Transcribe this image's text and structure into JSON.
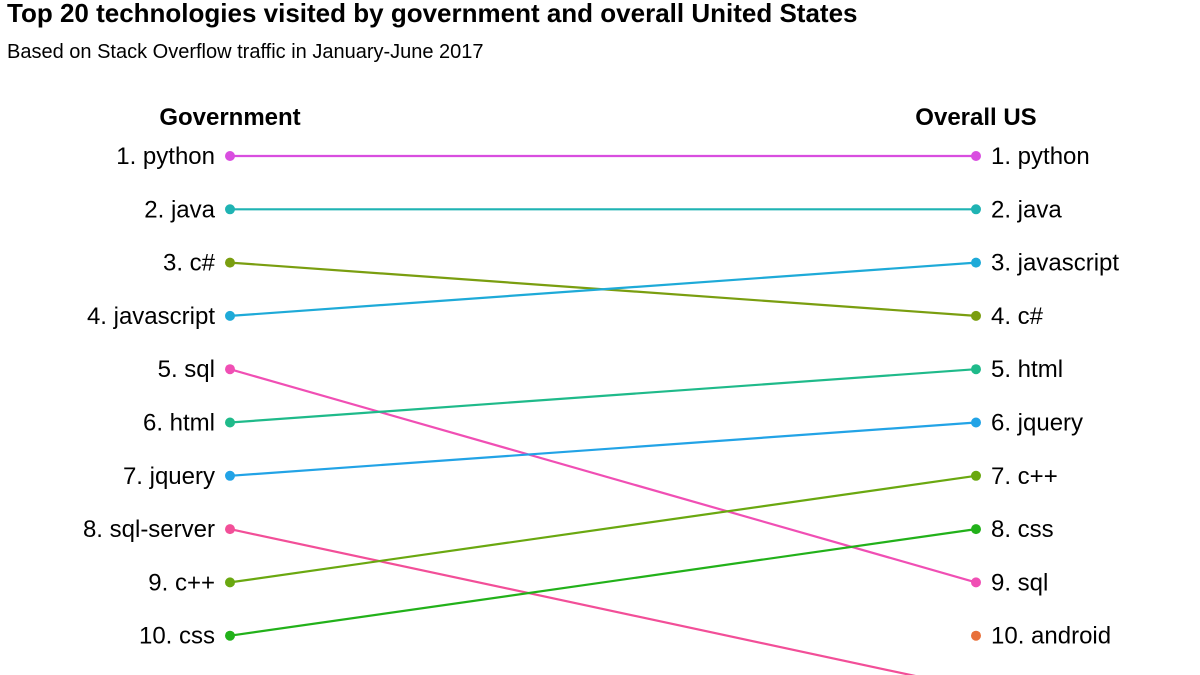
{
  "title": "Top 20 technologies visited by government and overall United States",
  "subtitle": "Based on Stack Overflow traffic in January-June 2017",
  "chart_data": {
    "type": "slope",
    "left_header": "Government",
    "right_header": "Overall US",
    "left_labels": [
      "1. python",
      "2. java",
      "3. c#",
      "4. javascript",
      "5. sql",
      "6. html",
      "7. jquery",
      "8. sql-server",
      "9. c++",
      "10. css"
    ],
    "right_labels": [
      "1. python",
      "2. java",
      "3. javascript",
      "4. c#",
      "5. html",
      "6. jquery",
      "7. c++",
      "8. css",
      "9. sql",
      "10. android"
    ],
    "series": [
      {
        "name": "python",
        "gov_rank": 1,
        "us_rank": 1,
        "color": "#d94ee0"
      },
      {
        "name": "java",
        "gov_rank": 2,
        "us_rank": 2,
        "color": "#1fb3b3"
      },
      {
        "name": "c#",
        "gov_rank": 3,
        "us_rank": 4,
        "color": "#7a9e10"
      },
      {
        "name": "javascript",
        "gov_rank": 4,
        "us_rank": 3,
        "color": "#1eaad8"
      },
      {
        "name": "sql",
        "gov_rank": 5,
        "us_rank": 9,
        "color": "#f04fb4"
      },
      {
        "name": "html",
        "gov_rank": 6,
        "us_rank": 5,
        "color": "#1fba8a"
      },
      {
        "name": "jquery",
        "gov_rank": 7,
        "us_rank": 6,
        "color": "#22a3e6"
      },
      {
        "name": "sql-server",
        "gov_rank": 8,
        "us_rank": null,
        "color": "#f24f98"
      },
      {
        "name": "c++",
        "gov_rank": 9,
        "us_rank": 7,
        "color": "#6aa810"
      },
      {
        "name": "css",
        "gov_rank": 10,
        "us_rank": 8,
        "color": "#22b11a"
      },
      {
        "name": "android",
        "gov_rank": null,
        "us_rank": 10,
        "color": "#e8703a"
      }
    ],
    "offscreen_right_rank": 11
  }
}
